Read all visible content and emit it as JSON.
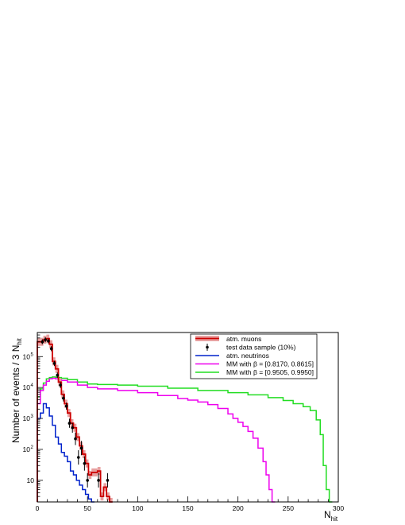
{
  "chart_data": {
    "type": "line",
    "title": "",
    "xlabel": "N",
    "xlabel_sub": "hit",
    "ylabel": "Number of events / 3 N",
    "ylabel_sub": "hit",
    "xlim": [
      0,
      300
    ],
    "ylog": true,
    "ylim": [
      2,
      600000
    ],
    "x_ticks": [
      0,
      50,
      100,
      150,
      200,
      250,
      300
    ],
    "x_tick_labels": [
      "0",
      "50",
      "100",
      "150",
      "200",
      "250",
      "300"
    ],
    "y_ticks": [
      10,
      100,
      1000,
      10000,
      100000
    ],
    "y_tick_base": "10",
    "y_tick_labels_first": "10",
    "y_tick_exponents": [
      "",
      "2",
      "3",
      "4",
      "5"
    ],
    "grid": false,
    "legend_position": "top-right",
    "bin_width": 3,
    "series": [
      {
        "name": "atm. muons",
        "style": "step-band",
        "color": "#cc0000",
        "band_color": "#e8a0a0",
        "values": [
          [
            0,
            300000
          ],
          [
            3,
            300000
          ],
          [
            6,
            350000
          ],
          [
            9,
            380000
          ],
          [
            12,
            250000
          ],
          [
            15,
            70000
          ],
          [
            18,
            40000
          ],
          [
            21,
            15000
          ],
          [
            24,
            6000
          ],
          [
            27,
            3000
          ],
          [
            30,
            1500
          ],
          [
            33,
            700
          ],
          [
            36,
            500
          ],
          [
            39,
            250
          ],
          [
            42,
            130
          ],
          [
            45,
            70
          ],
          [
            48,
            35
          ],
          [
            51,
            15
          ],
          [
            54,
            18
          ],
          [
            57,
            18
          ],
          [
            60,
            20
          ],
          [
            63,
            3
          ],
          [
            66,
            6
          ],
          [
            69,
            3
          ],
          [
            72,
            2
          ]
        ]
      },
      {
        "name": "test data sample (10%)",
        "style": "points",
        "color": "#000000",
        "values": [
          [
            5,
            300000
          ],
          [
            8,
            350000
          ],
          [
            11,
            320000
          ],
          [
            14,
            180000
          ],
          [
            17,
            60000
          ],
          [
            20,
            25000
          ],
          [
            23,
            12000
          ],
          [
            26,
            4500
          ],
          [
            29,
            2500
          ],
          [
            32,
            700
          ],
          [
            35,
            500
          ],
          [
            38,
            220
          ],
          [
            41,
            55
          ],
          [
            44,
            110
          ],
          [
            47,
            35
          ],
          [
            50,
            10
          ],
          [
            61,
            10
          ],
          [
            70,
            10
          ]
        ]
      },
      {
        "name": "atm. neutrinos",
        "style": "step",
        "color": "#0022cc",
        "values": [
          [
            0,
            1000
          ],
          [
            3,
            1500
          ],
          [
            6,
            3000
          ],
          [
            9,
            2200
          ],
          [
            12,
            1200
          ],
          [
            15,
            600
          ],
          [
            18,
            250
          ],
          [
            21,
            150
          ],
          [
            24,
            80
          ],
          [
            27,
            60
          ],
          [
            30,
            40
          ],
          [
            33,
            20
          ],
          [
            36,
            15
          ],
          [
            39,
            10
          ],
          [
            42,
            7
          ],
          [
            45,
            5
          ],
          [
            48,
            3.5
          ],
          [
            51,
            2.5
          ],
          [
            54,
            2
          ]
        ]
      },
      {
        "name": "MM with β = [0.8170, 0.8615]",
        "style": "step",
        "color": "#ee00ee",
        "values": [
          [
            0,
            3000
          ],
          [
            3,
            8000
          ],
          [
            6,
            12000
          ],
          [
            9,
            16000
          ],
          [
            12,
            19000
          ],
          [
            15,
            20000
          ],
          [
            18,
            19000
          ],
          [
            21,
            18000
          ],
          [
            24,
            17000
          ],
          [
            30,
            15000
          ],
          [
            40,
            12000
          ],
          [
            50,
            10000
          ],
          [
            60,
            9000
          ],
          [
            80,
            8000
          ],
          [
            100,
            6800
          ],
          [
            120,
            5500
          ],
          [
            140,
            4400
          ],
          [
            150,
            3900
          ],
          [
            160,
            3400
          ],
          [
            170,
            2800
          ],
          [
            180,
            2100
          ],
          [
            190,
            1400
          ],
          [
            195,
            1000
          ],
          [
            200,
            750
          ],
          [
            205,
            550
          ],
          [
            210,
            380
          ],
          [
            215,
            230
          ],
          [
            220,
            110
          ],
          [
            225,
            40
          ],
          [
            228,
            15
          ],
          [
            231,
            5
          ],
          [
            234,
            2
          ]
        ]
      },
      {
        "name": "MM with β = [0.9505, 0.9950]",
        "style": "step",
        "color": "#22dd22",
        "values": [
          [
            0,
            5000
          ],
          [
            3,
            9000
          ],
          [
            6,
            14000
          ],
          [
            9,
            19000
          ],
          [
            12,
            21000
          ],
          [
            15,
            22000
          ],
          [
            18,
            21500
          ],
          [
            21,
            21000
          ],
          [
            24,
            20000
          ],
          [
            30,
            18000
          ],
          [
            40,
            15000
          ],
          [
            50,
            13000
          ],
          [
            60,
            12500
          ],
          [
            80,
            12000
          ],
          [
            100,
            11000
          ],
          [
            130,
            9500
          ],
          [
            160,
            8000
          ],
          [
            190,
            6800
          ],
          [
            210,
            5800
          ],
          [
            230,
            4700
          ],
          [
            245,
            3800
          ],
          [
            255,
            3000
          ],
          [
            265,
            2400
          ],
          [
            272,
            1800
          ],
          [
            278,
            900
          ],
          [
            282,
            300
          ],
          [
            285,
            30
          ],
          [
            288,
            5
          ],
          [
            291,
            2
          ]
        ]
      }
    ]
  }
}
